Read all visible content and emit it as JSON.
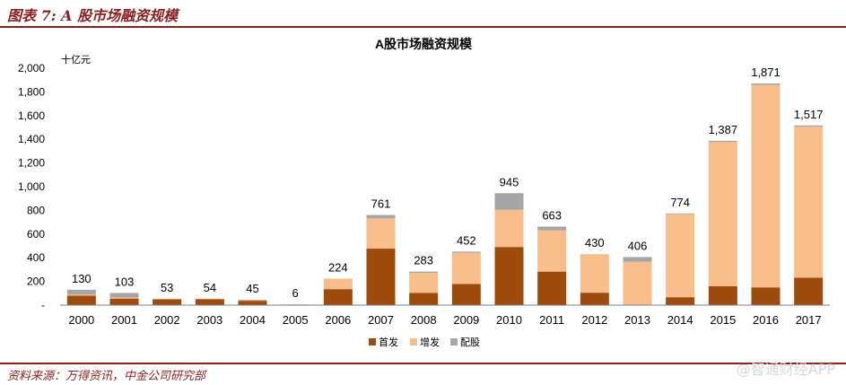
{
  "figure": {
    "title": "图表 7: A 股市场融资规模",
    "source": "资料来源：万得资讯，中金公司研究部",
    "watermark": "@智通财经APP"
  },
  "colors": {
    "ipo": "#9E4B0E",
    "seo": "#F7BE8C",
    "rights": "#A6A6A6",
    "accent": "#8a1f1f"
  },
  "chart_data": {
    "type": "bar",
    "stacked": true,
    "title": "A股市场融资规模",
    "unit_label": "十亿元",
    "categories": [
      "2000",
      "2001",
      "2002",
      "2003",
      "2004",
      "2005",
      "2006",
      "2007",
      "2008",
      "2009",
      "2010",
      "2011",
      "2012",
      "2013",
      "2014",
      "2015",
      "2016",
      "2017"
    ],
    "series": [
      {
        "name": "首发",
        "values": [
          80,
          55,
          52,
          53,
          37,
          0,
          135,
          477,
          104,
          179,
          491,
          283,
          105,
          0,
          67,
          159,
          150,
          231
        ]
      },
      {
        "name": "增发",
        "values": [
          10,
          10,
          1,
          1,
          6,
          6,
          89,
          255,
          168,
          264,
          313,
          348,
          325,
          366,
          701,
          1218,
          1709,
          1275
        ]
      },
      {
        "name": "配股",
        "values": [
          40,
          38,
          0,
          0,
          2,
          0,
          0,
          29,
          11,
          9,
          141,
          32,
          0,
          40,
          6,
          10,
          12,
          11
        ]
      }
    ],
    "totals": [
      130,
      103,
      53,
      54,
      45,
      6,
      224,
      761,
      283,
      452,
      945,
      663,
      430,
      406,
      774,
      1387,
      1871,
      1517
    ],
    "total_labels": [
      "130",
      "103",
      "53",
      "54",
      "45",
      "6",
      "224",
      "761",
      "283",
      "452",
      "945",
      "663",
      "430",
      "406",
      "774",
      "1,387",
      "1,871",
      "1,517"
    ],
    "ylim": [
      0,
      2000
    ],
    "yticks": [
      0,
      200,
      400,
      600,
      800,
      1000,
      1200,
      1400,
      1600,
      1800,
      2000
    ],
    "ytick_labels": [
      "-",
      "200",
      "400",
      "600",
      "800",
      "1,000",
      "1,200",
      "1,400",
      "1,600",
      "1,800",
      "2,000"
    ],
    "legend_position": "bottom-center",
    "grid": false
  }
}
